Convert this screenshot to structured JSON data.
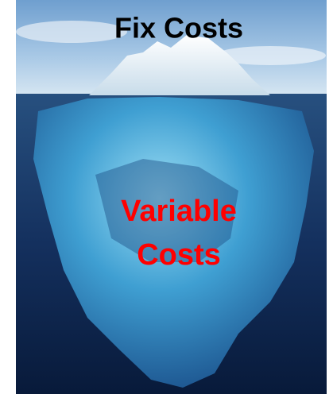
{
  "overlay_text": {
    "top": "Fix Costs",
    "bottom_lines": [
      "Variable",
      "Costs"
    ]
  }
}
